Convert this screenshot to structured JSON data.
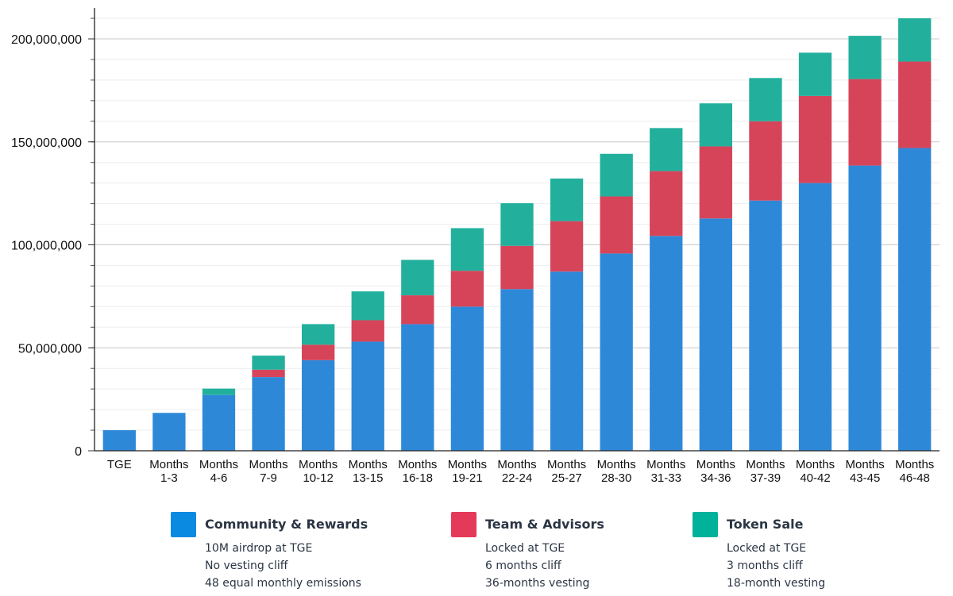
{
  "chart_data": {
    "type": "bar",
    "stacked": true,
    "categories": [
      "TGE",
      "Months 1-3",
      "Months 4-6",
      "Months 7-9",
      "Months 10-12",
      "Months 13-15",
      "Months 16-18",
      "Months 19-21",
      "Months 22-24",
      "Months 25-27",
      "Months 28-30",
      "Months 31-33",
      "Months 34-36",
      "Months 37-39",
      "Months 40-42",
      "Months 43-45",
      "Months 46-48"
    ],
    "category_lines": [
      [
        "TGE"
      ],
      [
        "Months",
        "1-3"
      ],
      [
        "Months",
        "4-6"
      ],
      [
        "Months",
        "7-9"
      ],
      [
        "Months",
        "10-12"
      ],
      [
        "Months",
        "13-15"
      ],
      [
        "Months",
        "16-18"
      ],
      [
        "Months",
        "19-21"
      ],
      [
        "Months",
        "22-24"
      ],
      [
        "Months",
        "25-27"
      ],
      [
        "Months",
        "28-30"
      ],
      [
        "Months",
        "31-33"
      ],
      [
        "Months",
        "34-36"
      ],
      [
        "Months",
        "37-39"
      ],
      [
        "Months",
        "40-42"
      ],
      [
        "Months",
        "43-45"
      ],
      [
        "Months",
        "46-48"
      ]
    ],
    "series": [
      {
        "name": "Community & Rewards",
        "color": "#2e88d8",
        "values": [
          10000000,
          18400000,
          27100000,
          35800000,
          44000000,
          53000000,
          61500000,
          70000000,
          78500000,
          87000000,
          95800000,
          104300000,
          112800000,
          121500000,
          130000000,
          138500000,
          147000000
        ]
      },
      {
        "name": "Team & Advisors",
        "color": "#d64459",
        "values": [
          0,
          0,
          0,
          3600000,
          7500000,
          10400000,
          14000000,
          17400000,
          21000000,
          24500000,
          27700000,
          31500000,
          35000000,
          38500000,
          42300000,
          42000000,
          42000000
        ]
      },
      {
        "name": "Token Sale",
        "color": "#22b09d",
        "values": [
          0,
          0,
          3100000,
          6800000,
          10000000,
          14000000,
          17200000,
          20700000,
          20700000,
          20700000,
          20700000,
          20900000,
          20900000,
          21000000,
          21000000,
          21000000,
          21000000
        ]
      }
    ],
    "ylim": [
      0,
      210000000
    ],
    "yticks": [
      0,
      50000000,
      100000000,
      150000000,
      200000000
    ],
    "ytick_labels": [
      "0",
      "50,000,000",
      "100,000,000",
      "150,000,000",
      "200,000,000"
    ],
    "grid": true,
    "legend_position": "bottom"
  },
  "legend": [
    {
      "title": "Community & Rewards",
      "color": "#0a8ae0",
      "lines": [
        "10M airdrop at TGE",
        "No vesting cliff",
        "48 equal monthly emissions"
      ]
    },
    {
      "title": "Team & Advisors",
      "color": "#e5395a",
      "lines": [
        "Locked at TGE",
        "6 months cliff",
        "36-months vesting"
      ]
    },
    {
      "title": "Token Sale",
      "color": "#00b29a",
      "lines": [
        "Locked at TGE",
        "3 months cliff",
        "18-month vesting"
      ]
    }
  ]
}
